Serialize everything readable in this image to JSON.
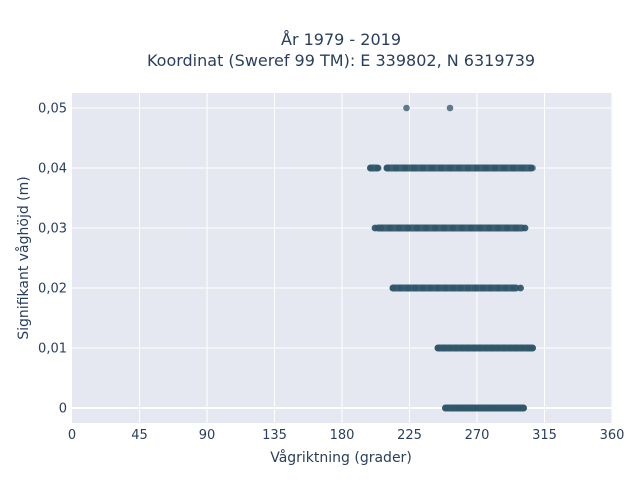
{
  "chart_data": {
    "type": "scatter",
    "title": "År 1979 - 2019",
    "subtitle": "Koordinat (Sweref 99 TM): E 339802, N 6319739",
    "xlabel": "Vågriktning (grader)",
    "ylabel": "Signifikant våghöjd (m)",
    "xlim": [
      0,
      360
    ],
    "ylim": [
      -0.0025,
      0.0525
    ],
    "x_ticks": [
      0,
      45,
      90,
      135,
      180,
      225,
      270,
      315,
      360
    ],
    "x_tick_labels": [
      "0",
      "45",
      "90",
      "135",
      "180",
      "225",
      "270",
      "315",
      "360"
    ],
    "y_ticks": [
      0,
      0.01,
      0.02,
      0.03,
      0.04,
      0.05
    ],
    "y_tick_labels": [
      "0",
      "0,01",
      "0,02",
      "0,03",
      "0,04",
      "0,05"
    ],
    "grid": true,
    "marker_color": "#2e5468",
    "plot_bgcolor": "#e5e8f0",
    "series": [
      {
        "points_x": [
          249,
          253,
          256,
          259,
          262,
          265,
          268,
          271,
          274,
          277,
          280,
          283,
          286,
          289,
          292,
          295,
          298,
          301
        ],
        "points_y": [
          0,
          0,
          0,
          0,
          0,
          0,
          0,
          0,
          0,
          0,
          0,
          0,
          0,
          0,
          0,
          0,
          0,
          0
        ],
        "band_ranges": [
          [
            249,
            301
          ]
        ]
      },
      {
        "points_x": [
          244,
          248,
          252,
          256,
          260,
          264,
          268,
          272,
          276,
          280,
          284,
          288,
          292,
          296,
          300,
          304,
          307
        ],
        "points_y": [
          0.01,
          0.01,
          0.01,
          0.01,
          0.01,
          0.01,
          0.01,
          0.01,
          0.01,
          0.01,
          0.01,
          0.01,
          0.01,
          0.01,
          0.01,
          0.01,
          0.01
        ],
        "band_ranges": [
          [
            244,
            307
          ]
        ]
      },
      {
        "points_x": [
          214,
          219,
          224,
          229,
          234,
          239,
          244,
          249,
          254,
          259,
          264,
          269,
          274,
          279,
          284,
          289,
          294,
          299
        ],
        "points_y": [
          0.02,
          0.02,
          0.02,
          0.02,
          0.02,
          0.02,
          0.02,
          0.02,
          0.02,
          0.02,
          0.02,
          0.02,
          0.02,
          0.02,
          0.02,
          0.02,
          0.02,
          0.02
        ],
        "band_ranges": [
          [
            214,
            296
          ]
        ],
        "isolated_x": [
          299
        ]
      },
      {
        "points_x": [
          202,
          206,
          212,
          218,
          224,
          230,
          236,
          242,
          248,
          254,
          260,
          266,
          272,
          278,
          284,
          290,
          296,
          302
        ],
        "points_y": [
          0.03,
          0.03,
          0.03,
          0.03,
          0.03,
          0.03,
          0.03,
          0.03,
          0.03,
          0.03,
          0.03,
          0.03,
          0.03,
          0.03,
          0.03,
          0.03,
          0.03,
          0.03
        ],
        "band_ranges": [
          [
            204,
            300
          ]
        ],
        "isolated_x": [
          202,
          302
        ]
      },
      {
        "points_x": [
          199,
          204,
          210,
          216,
          222,
          228,
          234,
          240,
          246,
          252,
          258,
          264,
          270,
          276,
          282,
          288,
          294,
          300,
          306
        ],
        "points_y": [
          0.04,
          0.04,
          0.04,
          0.04,
          0.04,
          0.04,
          0.04,
          0.04,
          0.04,
          0.04,
          0.04,
          0.04,
          0.04,
          0.04,
          0.04,
          0.04,
          0.04,
          0.04,
          0.04
        ],
        "band_ranges": [
          [
            199,
            203
          ],
          [
            210,
            306
          ]
        ],
        "isolated_x": [
          204,
          307
        ]
      },
      {
        "points_x": [
          223,
          252
        ],
        "points_y": [
          0.05,
          0.05
        ]
      }
    ]
  }
}
